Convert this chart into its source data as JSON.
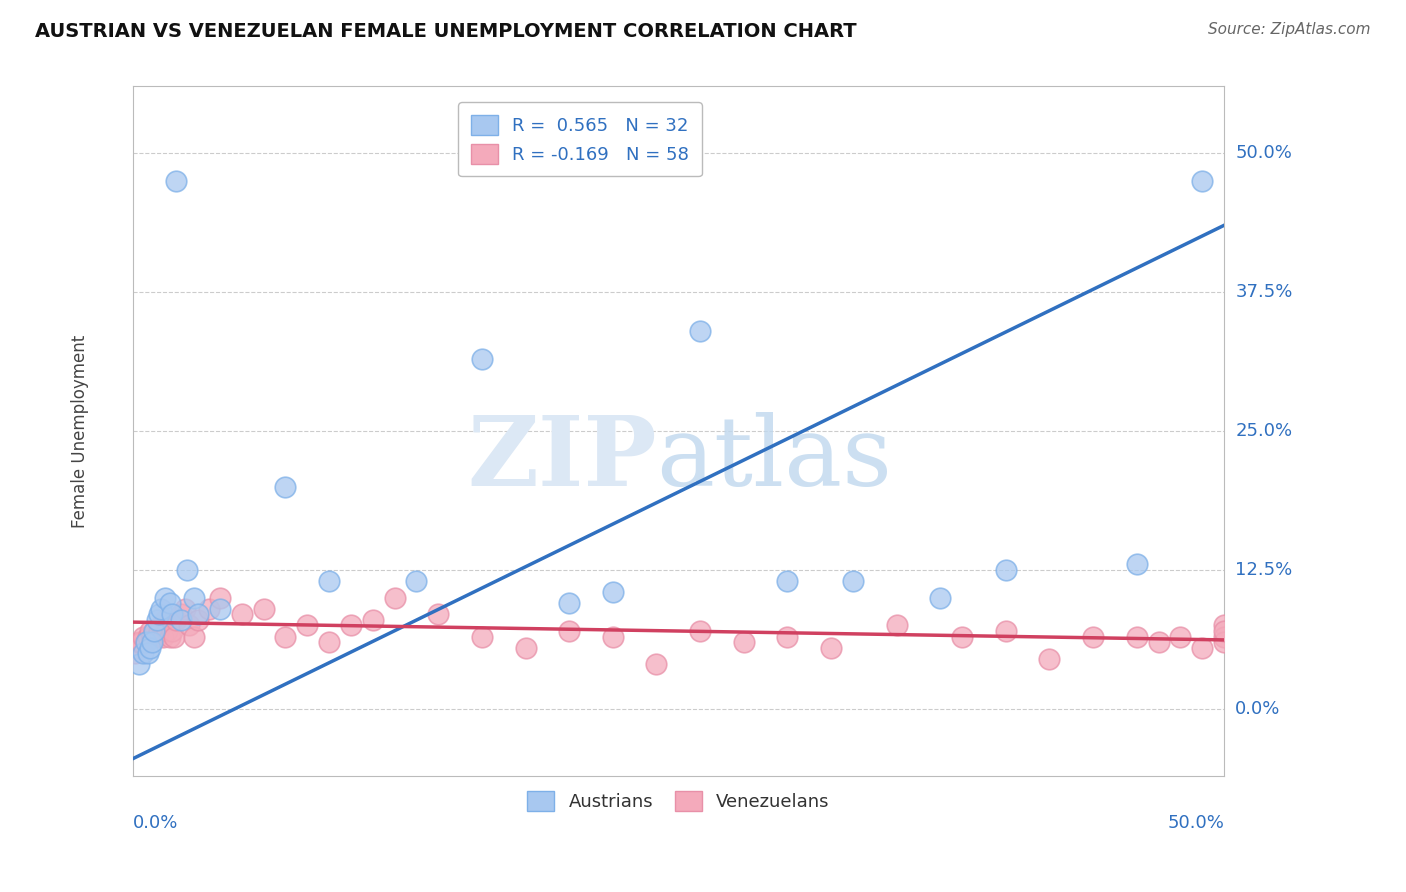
{
  "title": "AUSTRIAN VS VENEZUELAN FEMALE UNEMPLOYMENT CORRELATION CHART",
  "source": "Source: ZipAtlas.com",
  "ylabel": "Female Unemployment",
  "ytick_labels": [
    "0.0%",
    "12.5%",
    "25.0%",
    "37.5%",
    "50.0%"
  ],
  "ytick_values": [
    0.0,
    0.125,
    0.25,
    0.375,
    0.5
  ],
  "xmin": 0.0,
  "xmax": 0.5,
  "ymin": -0.06,
  "ymax": 0.56,
  "legend_entries": [
    {
      "label": "R =  0.565   N = 32",
      "color": "#A8C8F0"
    },
    {
      "label": "R = -0.169   N = 58",
      "color": "#F4AABB"
    }
  ],
  "austrians_color": "#A8C8F0",
  "venezuelans_color": "#F4AABB",
  "austrians_edge_color": "#7EB0E8",
  "venezuelans_edge_color": "#E890A8",
  "austrians_line_color": "#3070C0",
  "venezuelans_line_color": "#D04060",
  "background_color": "#FFFFFF",
  "grid_color": "#CCCCCC",
  "austrians_x": [
    0.003,
    0.005,
    0.006,
    0.007,
    0.008,
    0.009,
    0.01,
    0.011,
    0.012,
    0.013,
    0.015,
    0.017,
    0.018,
    0.02,
    0.022,
    0.025,
    0.028,
    0.03,
    0.04,
    0.07,
    0.09,
    0.13,
    0.16,
    0.2,
    0.22,
    0.26,
    0.3,
    0.33,
    0.37,
    0.4,
    0.46,
    0.49
  ],
  "austrians_y": [
    0.04,
    0.05,
    0.06,
    0.05,
    0.055,
    0.06,
    0.07,
    0.08,
    0.085,
    0.09,
    0.1,
    0.095,
    0.085,
    0.475,
    0.08,
    0.125,
    0.1,
    0.085,
    0.09,
    0.2,
    0.115,
    0.115,
    0.315,
    0.095,
    0.105,
    0.34,
    0.115,
    0.115,
    0.1,
    0.125,
    0.13,
    0.475
  ],
  "venezuelans_x": [
    0.001,
    0.002,
    0.003,
    0.004,
    0.005,
    0.006,
    0.007,
    0.008,
    0.009,
    0.01,
    0.011,
    0.012,
    0.013,
    0.014,
    0.015,
    0.016,
    0.017,
    0.018,
    0.019,
    0.02,
    0.022,
    0.024,
    0.026,
    0.028,
    0.03,
    0.035,
    0.04,
    0.05,
    0.06,
    0.07,
    0.08,
    0.09,
    0.1,
    0.11,
    0.12,
    0.14,
    0.16,
    0.18,
    0.2,
    0.22,
    0.24,
    0.26,
    0.28,
    0.3,
    0.32,
    0.35,
    0.38,
    0.4,
    0.42,
    0.44,
    0.46,
    0.47,
    0.48,
    0.49,
    0.5,
    0.5,
    0.5,
    0.5
  ],
  "venezuelans_y": [
    0.05,
    0.055,
    0.06,
    0.06,
    0.065,
    0.06,
    0.065,
    0.07,
    0.065,
    0.07,
    0.065,
    0.07,
    0.075,
    0.065,
    0.08,
    0.07,
    0.065,
    0.07,
    0.065,
    0.08,
    0.085,
    0.09,
    0.075,
    0.065,
    0.08,
    0.09,
    0.1,
    0.085,
    0.09,
    0.065,
    0.075,
    0.06,
    0.075,
    0.08,
    0.1,
    0.085,
    0.065,
    0.055,
    0.07,
    0.065,
    0.04,
    0.07,
    0.06,
    0.065,
    0.055,
    0.075,
    0.065,
    0.07,
    0.045,
    0.065,
    0.065,
    0.06,
    0.065,
    0.055,
    0.075,
    0.065,
    0.06,
    0.07
  ],
  "austrians_line_x0": 0.0,
  "austrians_line_y0": -0.045,
  "austrians_line_x1": 0.5,
  "austrians_line_y1": 0.435,
  "venezuelans_line_x0": 0.0,
  "venezuelans_line_x1": 0.5,
  "venezuelans_line_y0": 0.078,
  "venezuelans_line_y1": 0.062
}
